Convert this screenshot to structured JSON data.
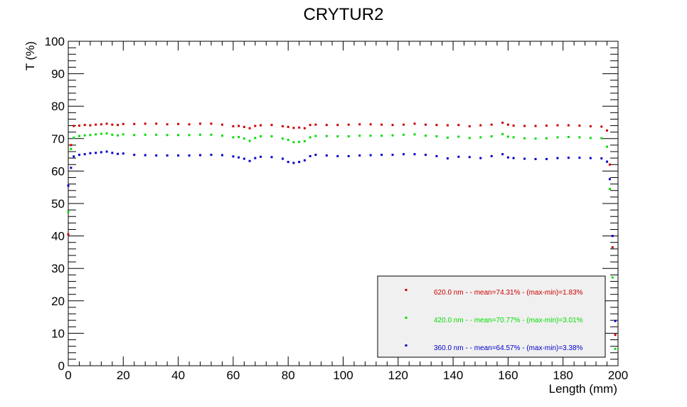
{
  "chart_data": {
    "type": "scatter",
    "title": "CRYTUR2",
    "xlabel": "Length (mm)",
    "ylabel": "T (%)",
    "xlim": [
      0,
      200
    ],
    "ylim": [
      0,
      100
    ],
    "x_ticks": [
      0,
      20,
      40,
      60,
      80,
      100,
      120,
      140,
      160,
      180,
      200
    ],
    "y_ticks": [
      0,
      10,
      20,
      30,
      40,
      50,
      60,
      70,
      80,
      90,
      100
    ],
    "x_tick_labels": [
      "0",
      "20",
      "40",
      "60",
      "80",
      "100",
      "120",
      "140",
      "160",
      "180",
      "200"
    ],
    "y_tick_labels": [
      "0",
      "10",
      "20",
      "30",
      "40",
      "50",
      "60",
      "70",
      "80",
      "90",
      "100"
    ],
    "grid": false,
    "legend_position": "bottom-right",
    "series": [
      {
        "name": "620.0 nm -  - mean=74.31% - (max-min)=1.83%",
        "color": "#cc0000",
        "x": [
          0,
          1,
          2,
          4,
          6,
          8,
          10,
          12,
          14,
          16,
          18,
          20,
          24,
          28,
          32,
          36,
          40,
          44,
          48,
          52,
          56,
          60,
          62,
          64,
          66,
          68,
          70,
          74,
          78,
          80,
          82,
          84,
          86,
          88,
          90,
          94,
          98,
          102,
          106,
          110,
          114,
          118,
          122,
          126,
          130,
          134,
          138,
          142,
          146,
          150,
          154,
          158,
          160,
          162,
          166,
          170,
          174,
          178,
          182,
          186,
          190,
          194,
          196,
          197,
          198,
          199
        ],
        "y": [
          40.5,
          68,
          73.9,
          74,
          74.2,
          74.1,
          74.3,
          74.4,
          74.6,
          74.3,
          74.2,
          74.5,
          74.5,
          74.6,
          74.6,
          74.4,
          74.5,
          74.4,
          74.6,
          74.6,
          74.3,
          73.8,
          73.9,
          73.6,
          73.2,
          73.9,
          74.1,
          74.2,
          73.8,
          73.6,
          73.3,
          73.4,
          73.2,
          74.2,
          74.3,
          74.2,
          74.2,
          74.3,
          74.4,
          74.4,
          74.3,
          74.2,
          74.3,
          74.6,
          74.3,
          74.2,
          74.1,
          74.2,
          73.8,
          74.1,
          74.3,
          74.9,
          74.3,
          74.0,
          73.9,
          73.9,
          74.0,
          74.1,
          74.1,
          74.0,
          73.8,
          73.7,
          72.5,
          62,
          36.5,
          9.5
        ]
      },
      {
        "name": "420.0 nm -  - mean=70.77% - (max-min)=3.01%",
        "color": "#00dd00",
        "x": [
          0,
          1,
          2,
          4,
          6,
          8,
          10,
          12,
          14,
          16,
          18,
          20,
          24,
          28,
          32,
          36,
          40,
          44,
          48,
          52,
          56,
          60,
          62,
          64,
          66,
          68,
          70,
          74,
          78,
          80,
          82,
          84,
          86,
          88,
          90,
          94,
          98,
          102,
          106,
          110,
          114,
          118,
          122,
          126,
          130,
          134,
          138,
          142,
          146,
          150,
          154,
          158,
          160,
          162,
          166,
          170,
          174,
          178,
          182,
          186,
          190,
          194,
          196,
          197,
          198,
          199
        ],
        "y": [
          47.5,
          66.8,
          70.3,
          70.8,
          71.0,
          71.1,
          71.3,
          71.5,
          71.6,
          71.2,
          71.0,
          71.3,
          71.1,
          71.2,
          71.2,
          71.1,
          71.1,
          71.1,
          71.2,
          71.2,
          70.9,
          70.4,
          70.5,
          70.0,
          69.3,
          70.2,
          70.7,
          70.7,
          70.0,
          69.6,
          68.9,
          69.0,
          69.2,
          70.4,
          70.8,
          70.8,
          70.7,
          70.7,
          70.9,
          70.9,
          70.9,
          71.0,
          71.2,
          71.3,
          70.9,
          70.7,
          70.3,
          70.6,
          70.2,
          70.4,
          70.7,
          71.4,
          70.6,
          70.4,
          70.1,
          70.0,
          70.1,
          70.4,
          70.5,
          70.4,
          70.2,
          70.1,
          67.5,
          54.5,
          27.2,
          5.2
        ]
      },
      {
        "name": "360.0 nm -  - mean=64.57% - (max-min)=3.38%",
        "color": "#0000cc",
        "x": [
          0,
          1,
          2,
          4,
          6,
          8,
          10,
          12,
          14,
          16,
          18,
          20,
          24,
          28,
          32,
          36,
          40,
          44,
          48,
          52,
          56,
          60,
          62,
          64,
          66,
          68,
          70,
          74,
          78,
          80,
          82,
          84,
          86,
          88,
          90,
          94,
          98,
          102,
          106,
          110,
          114,
          118,
          122,
          126,
          130,
          134,
          138,
          142,
          146,
          150,
          154,
          158,
          160,
          162,
          166,
          170,
          174,
          178,
          182,
          186,
          190,
          194,
          196,
          197,
          198,
          199
        ],
        "y": [
          55.5,
          61,
          64.5,
          65.0,
          65.2,
          65.5,
          65.6,
          65.8,
          66.0,
          65.6,
          65.3,
          65.4,
          65.0,
          64.9,
          64.8,
          64.8,
          64.8,
          64.8,
          64.9,
          65.0,
          64.9,
          64.5,
          64.2,
          63.8,
          63.1,
          64.0,
          64.4,
          64.3,
          63.8,
          62.8,
          62.5,
          62.8,
          63.3,
          64.6,
          65.0,
          64.8,
          64.6,
          64.6,
          64.8,
          64.9,
          65.0,
          65.0,
          65.2,
          65.2,
          65.0,
          64.6,
          63.9,
          64.4,
          64.3,
          64.0,
          64.6,
          65.2,
          64.2,
          64.0,
          63.8,
          63.7,
          63.7,
          64.0,
          64.1,
          64.1,
          64.0,
          63.9,
          62.9,
          57.5,
          40,
          13.8
        ]
      }
    ]
  }
}
